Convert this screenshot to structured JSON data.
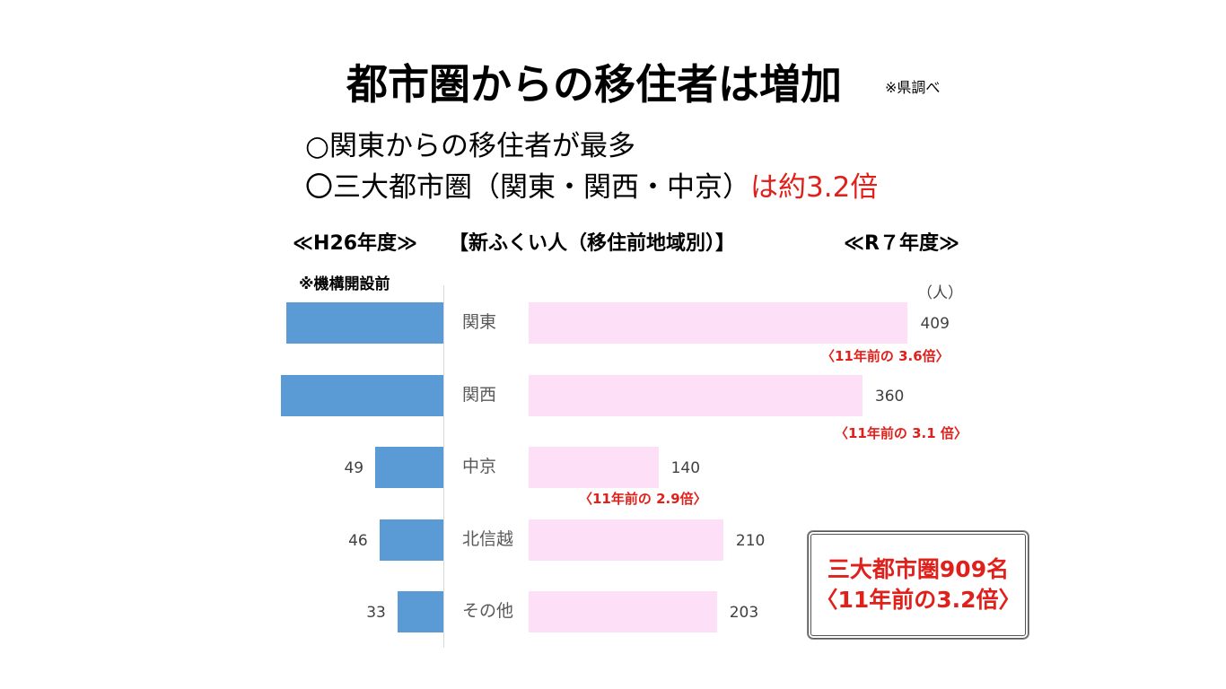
{
  "header": {
    "title": "都市圏からの移住者は増加",
    "note": "※県調べ"
  },
  "bullets": {
    "line1": "○関東からの移住者が最多",
    "line2_black": "〇三大都市圏（関東・関西・中京）",
    "line2_red": "は約3.2倍"
  },
  "sections": {
    "left_era": "≪H26年度≫",
    "center_title": "【新ふくい人（移住前地域別）】",
    "right_era": "≪R７年度≫",
    "left_note": "※機構開設前",
    "unit": "（人）"
  },
  "summary": {
    "line1": "三大都市圏909名",
    "line2": "〈11年前の3.2倍〉"
  },
  "colors": {
    "left_bar": "#5b9bd5",
    "right_bar": "#fde0f8",
    "accent_red": "#e0201b"
  },
  "chart_data": {
    "type": "bar",
    "orientation": "horizontal-back-to-back",
    "categories": [
      "関東",
      "関西",
      "中京",
      "北信越",
      "その他"
    ],
    "series": [
      {
        "name": "≪H26年度≫",
        "values": [
          113,
          117,
          49,
          46,
          33
        ],
        "labels": [
          "",
          "",
          "49",
          "46",
          "33"
        ]
      },
      {
        "name": "≪R７年度≫",
        "values": [
          409,
          360,
          140,
          210,
          203
        ],
        "labels": [
          "409",
          "360",
          "140",
          "210",
          "203"
        ]
      }
    ],
    "annotations": [
      "〈11年前の 3.6倍〉",
      "〈11年前の 3.1 倍〉",
      "〈11年前の 2.9倍〉"
    ],
    "grid": false,
    "legend": "none"
  }
}
